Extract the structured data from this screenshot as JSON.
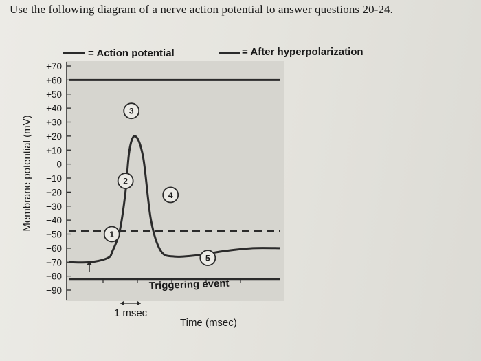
{
  "question": "Use the following diagram of a nerve action potential to answer questions 20-24.",
  "colors": {
    "line": "#2b2b2b",
    "plot_bg": "#d6d5cf",
    "text": "#1a1a1a"
  },
  "chart_data": {
    "type": "line",
    "title": "",
    "xlabel": "Time (msec)",
    "ylabel": "Membrane potential (mV)",
    "ylim": [
      -90,
      70
    ],
    "y_ticks": [
      "+70",
      "+60",
      "+50",
      "+40",
      "+30",
      "+20",
      "+10",
      "0",
      "−10",
      "−20",
      "−30",
      "−40",
      "−50",
      "−60",
      "−70",
      "−80",
      "−90"
    ],
    "x_units_shown": "1 msec",
    "legend": {
      "placement": "top",
      "entries": [
        {
          "style": "solid",
          "label": "= Action potential"
        },
        {
          "style": "solid",
          "label": "= After hyperpolarization"
        }
      ]
    },
    "reference_lines": [
      {
        "y": 60,
        "style": "solid"
      },
      {
        "y": -48,
        "style": "dashed"
      },
      {
        "y": -82,
        "style": "solid"
      }
    ],
    "series": [
      {
        "x": [
          0,
          0.55,
          1.0,
          1.12,
          1.3,
          1.45,
          1.55,
          1.7,
          1.9,
          2.1,
          2.35,
          2.7,
          3.3,
          4.0,
          4.7,
          5.4
        ],
        "y": [
          -70,
          -70,
          -67,
          -62,
          -48,
          -20,
          10,
          20,
          5,
          -40,
          -62,
          -66,
          -65,
          -62,
          -60,
          -60
        ]
      }
    ],
    "annotations": [
      {
        "text": "1",
        "x": 1.1,
        "y": -50
      },
      {
        "text": "2",
        "x": 1.45,
        "y": -12
      },
      {
        "text": "3",
        "x": 1.6,
        "y": 38
      },
      {
        "text": "4",
        "x": 2.6,
        "y": -22
      },
      {
        "text": "5",
        "x": 3.55,
        "y": -67
      },
      {
        "text": "Triggering event",
        "x": 1.0,
        "y": -80
      }
    ]
  }
}
